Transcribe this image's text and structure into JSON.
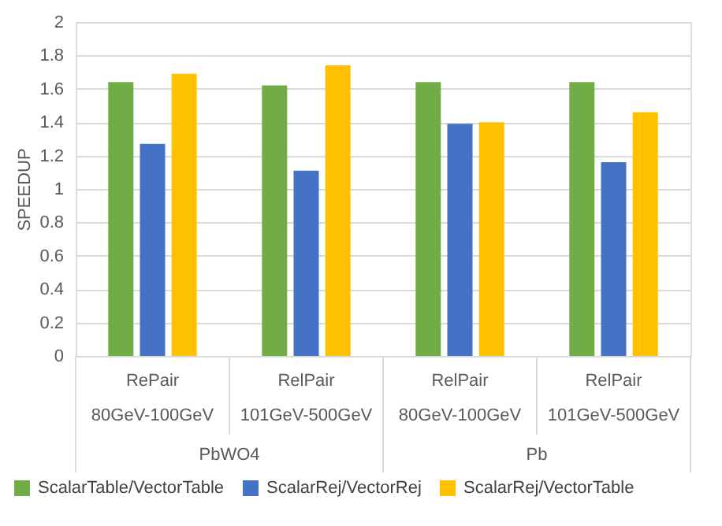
{
  "chart_data": {
    "type": "bar",
    "ylabel": "SPEEDUP",
    "categories": [
      "RePair\n80GeV-100GeV",
      "RelPair\n101GeV-500GeV",
      "RelPair\n80GeV-100GeV",
      "RelPair\n101GeV-500GeV"
    ],
    "annotations": [
      "PbWO4",
      "Pb"
    ],
    "series": [
      {
        "name": "ScalarTable/VectorTable",
        "color": "#70ad47",
        "values": [
          1.64,
          1.62,
          1.64,
          1.64
        ]
      },
      {
        "name": "ScalarRej/VectorRej",
        "color": "#4472c4",
        "values": [
          1.27,
          1.11,
          1.39,
          1.16
        ]
      },
      {
        "name": "ScalarRej/VectorTable",
        "color": "#ffc000",
        "values": [
          1.69,
          1.74,
          1.4,
          1.46
        ]
      }
    ],
    "ylim": [
      0,
      2
    ],
    "yticks": [
      0,
      0.2,
      0.4,
      0.6,
      0.8,
      1,
      1.2,
      1.4,
      1.6,
      1.8,
      2
    ],
    "grid": "y",
    "legend": "bottom"
  }
}
